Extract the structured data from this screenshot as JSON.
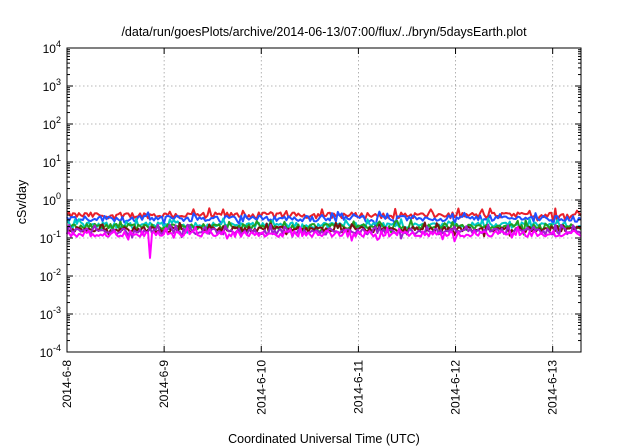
{
  "chart_data": {
    "type": "line",
    "title": "/data/run/goesPlots/archive/2014-06-13/07:00/flux/../bryn/5daysEarth.plot",
    "xlabel": "Coordinated Universal Time (UTC)",
    "ylabel": "cSv/day",
    "y_scale": "log",
    "ylim": [
      0.0001,
      10000
    ],
    "y_ticks": [
      {
        "base": "10",
        "exp": "-4"
      },
      {
        "base": "10",
        "exp": "-3"
      },
      {
        "base": "10",
        "exp": "-2"
      },
      {
        "base": "10",
        "exp": "-1"
      },
      {
        "base": "10",
        "exp": "0"
      },
      {
        "base": "10",
        "exp": "1"
      },
      {
        "base": "10",
        "exp": "2"
      },
      {
        "base": "10",
        "exp": "3"
      },
      {
        "base": "10",
        "exp": "4"
      }
    ],
    "xlim": [
      "2014-06-08",
      "2014-06-13 07:00"
    ],
    "x_ticks": [
      "2014-6-8",
      "2014-6-9",
      "2014-6-10",
      "2014-6-11",
      "2014-6-12",
      "2014-6-13"
    ],
    "grid": true,
    "legend": "none",
    "series": [
      {
        "color": "#e8202a",
        "level": 0.4
      },
      {
        "color": "#2050ff",
        "level": 0.33
      },
      {
        "color": "#00c8c8",
        "level": 0.22
      },
      {
        "color": "#20a020",
        "level": 0.2
      },
      {
        "color": "#7a1010",
        "level": 0.17
      },
      {
        "color": "#a020d0",
        "level": 0.15
      },
      {
        "color": "#ff00ff",
        "level": 0.13
      }
    ],
    "notable": [
      {
        "x": "2014-06-08 20:30",
        "series_color": "#ff00ff",
        "value": 0.03
      }
    ]
  }
}
